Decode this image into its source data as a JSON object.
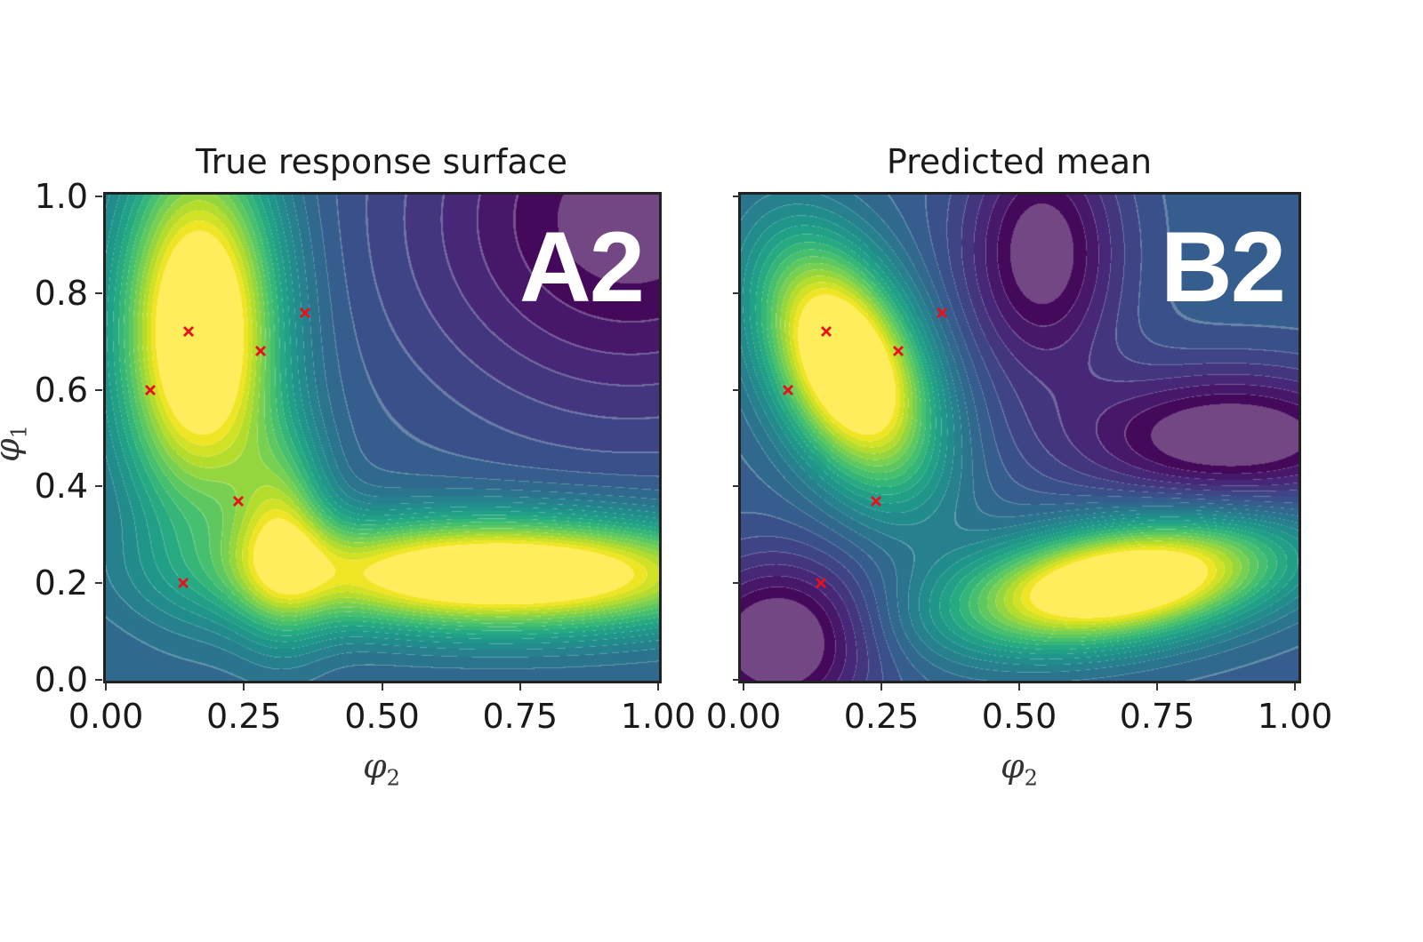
{
  "chart_data": [
    {
      "type": "heatmap",
      "title": "True response surface",
      "badge": "A2",
      "xlabel": "φ",
      "xlabel_sub": "2",
      "ylabel": "φ",
      "ylabel_sub": "1",
      "xlim": [
        0.0,
        1.0
      ],
      "ylim": [
        0.0,
        1.0
      ],
      "xticks": [
        "0.00",
        "0.25",
        "0.50",
        "0.75",
        "1.00"
      ],
      "yticks": [
        "0.0",
        "0.2",
        "0.4",
        "0.6",
        "0.8",
        "1.0"
      ],
      "colormap": "viridis",
      "surface_components": [
        {
          "cx": 0.17,
          "cy": 0.72,
          "sx": 0.1,
          "sy": 0.26,
          "amp": 0.95
        },
        {
          "cx": 0.72,
          "cy": 0.22,
          "sx": 0.3,
          "sy": 0.08,
          "amp": 0.95
        },
        {
          "cx": 0.32,
          "cy": 0.3,
          "sx": 0.06,
          "sy": 0.14,
          "amp": 0.45
        },
        {
          "cx": 0.95,
          "cy": 0.95,
          "sx": 0.3,
          "sy": 0.3,
          "amp": -0.35
        }
      ],
      "surface_base": 0.32,
      "markers": [
        {
          "x": 0.14,
          "y": 0.2
        },
        {
          "x": 0.08,
          "y": 0.6
        },
        {
          "x": 0.15,
          "y": 0.72
        },
        {
          "x": 0.28,
          "y": 0.68
        },
        {
          "x": 0.36,
          "y": 0.76
        },
        {
          "x": 0.24,
          "y": 0.37
        }
      ]
    },
    {
      "type": "heatmap",
      "title": "Predicted mean",
      "badge": "B2",
      "xlabel": "φ",
      "xlabel_sub": "2",
      "ylabel": "",
      "xlim": [
        0.0,
        1.0
      ],
      "ylim": [
        0.0,
        1.0
      ],
      "xticks": [
        "0.00",
        "0.25",
        "0.50",
        "0.75",
        "1.00"
      ],
      "yticks": [],
      "colormap": "viridis",
      "surface_components": [
        {
          "cx": 0.19,
          "cy": 0.65,
          "sx": 0.09,
          "sy": 0.18,
          "amp": 1.0,
          "rot": -0.35
        },
        {
          "cx": 0.68,
          "cy": 0.2,
          "sx": 0.2,
          "sy": 0.08,
          "amp": 0.98,
          "rot": -0.2
        },
        {
          "cx": 0.54,
          "cy": 0.88,
          "sx": 0.1,
          "sy": 0.18,
          "amp": -0.35
        },
        {
          "cx": 0.88,
          "cy": 0.5,
          "sx": 0.2,
          "sy": 0.1,
          "amp": -0.38
        },
        {
          "cx": 0.07,
          "cy": 0.08,
          "sx": 0.12,
          "sy": 0.12,
          "amp": -0.4
        }
      ],
      "surface_base": 0.3,
      "markers": [
        {
          "x": 0.14,
          "y": 0.2
        },
        {
          "x": 0.08,
          "y": 0.6
        },
        {
          "x": 0.15,
          "y": 0.72
        },
        {
          "x": 0.28,
          "y": 0.68
        },
        {
          "x": 0.36,
          "y": 0.76
        },
        {
          "x": 0.24,
          "y": 0.37
        }
      ]
    }
  ],
  "marker_color": "#e8101a"
}
